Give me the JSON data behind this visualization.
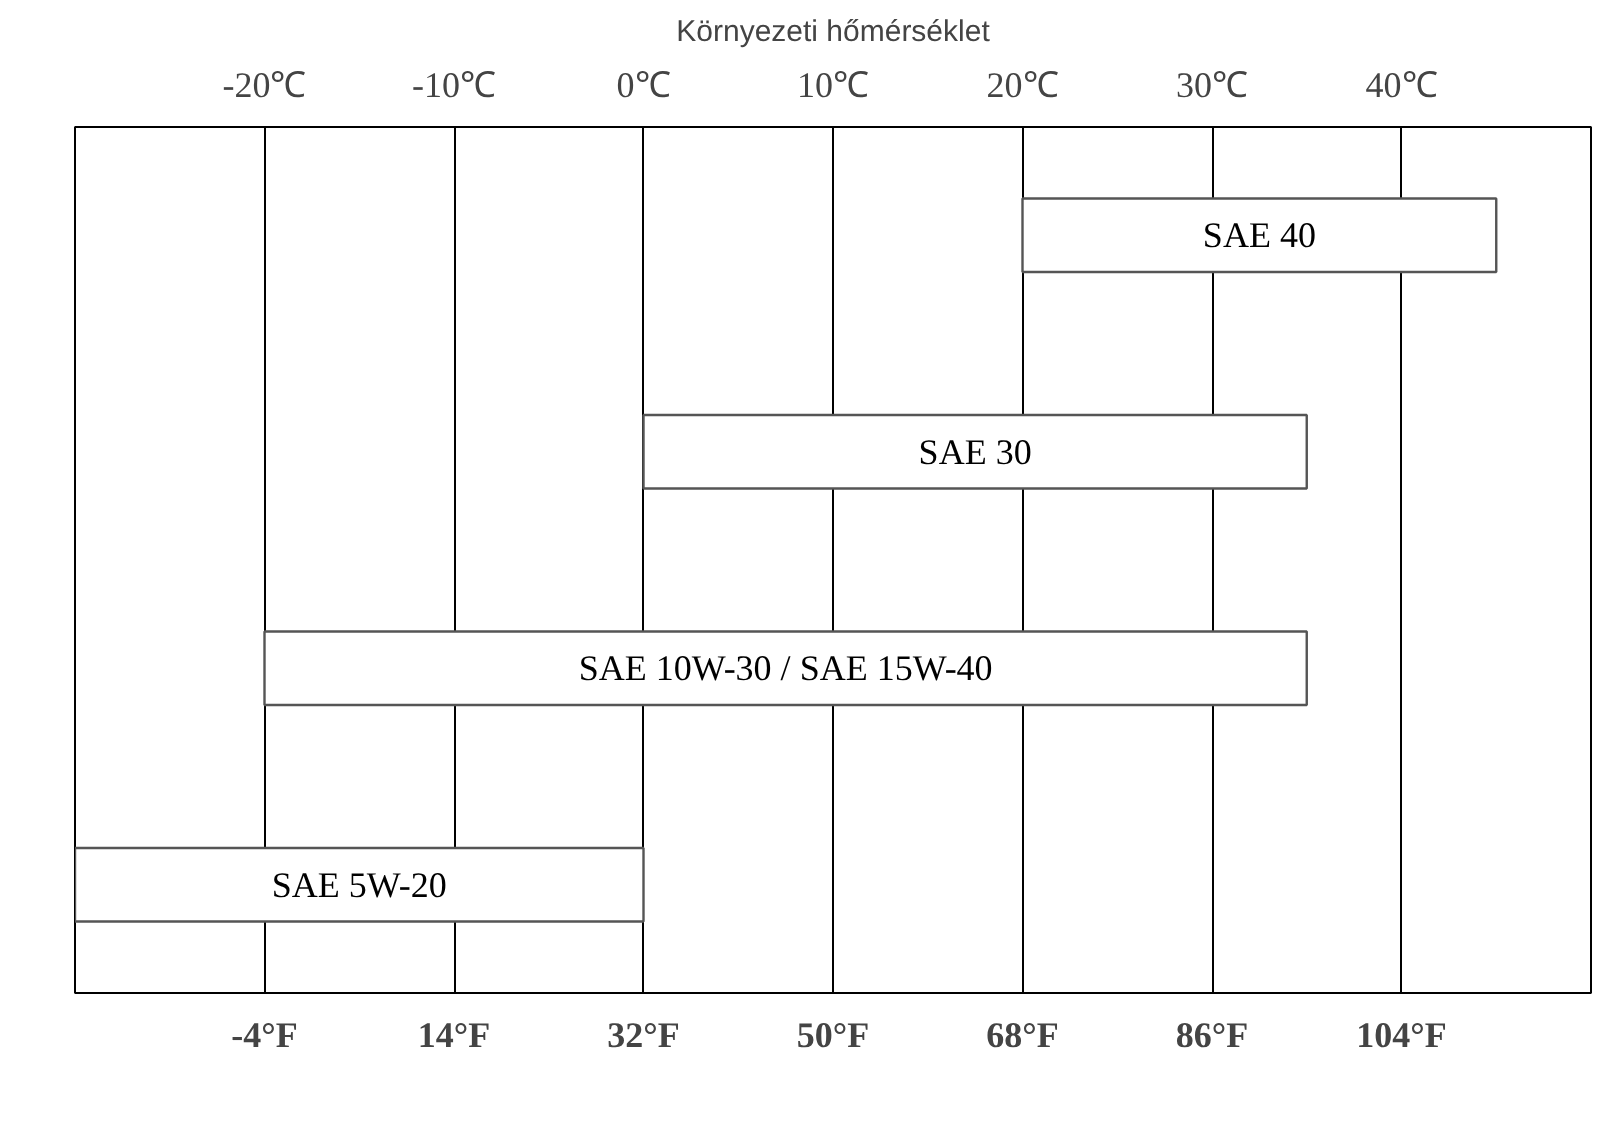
{
  "chart_data": {
    "type": "bar",
    "orientation": "horizontal",
    "title": "Környezeti hőmérséklet",
    "categories": [
      "SAE 40",
      "SAE 30",
      "SAE 10W-30 / SAE 15W-40",
      "SAE 5W-20"
    ],
    "base": [
      68,
      32,
      -4,
      -22
    ],
    "values": [
      45,
      63,
      99,
      54
    ],
    "color": "#ffffff",
    "xlim": [
      -22,
      122
    ],
    "xticks": [
      {
        "value": -4,
        "label": "-4°F"
      },
      {
        "value": 14,
        "label": "14°F"
      },
      {
        "value": 32,
        "label": "32°F"
      },
      {
        "value": 50,
        "label": "50°F"
      },
      {
        "value": 68,
        "label": "68°F"
      },
      {
        "value": 86,
        "label": "86°F"
      },
      {
        "value": 104,
        "label": "104°F"
      }
    ],
    "x2lim": [
      -30,
      50
    ],
    "x2ticks": [
      {
        "value": -20,
        "label": "-20℃"
      },
      {
        "value": -10,
        "label": "-10℃"
      },
      {
        "value": 0,
        "label": "0℃"
      },
      {
        "value": 10,
        "label": "10℃"
      },
      {
        "value": 20,
        "label": "20℃"
      },
      {
        "value": 30,
        "label": "30℃"
      },
      {
        "value": 40,
        "label": "40℃"
      }
    ],
    "grid": "x"
  }
}
